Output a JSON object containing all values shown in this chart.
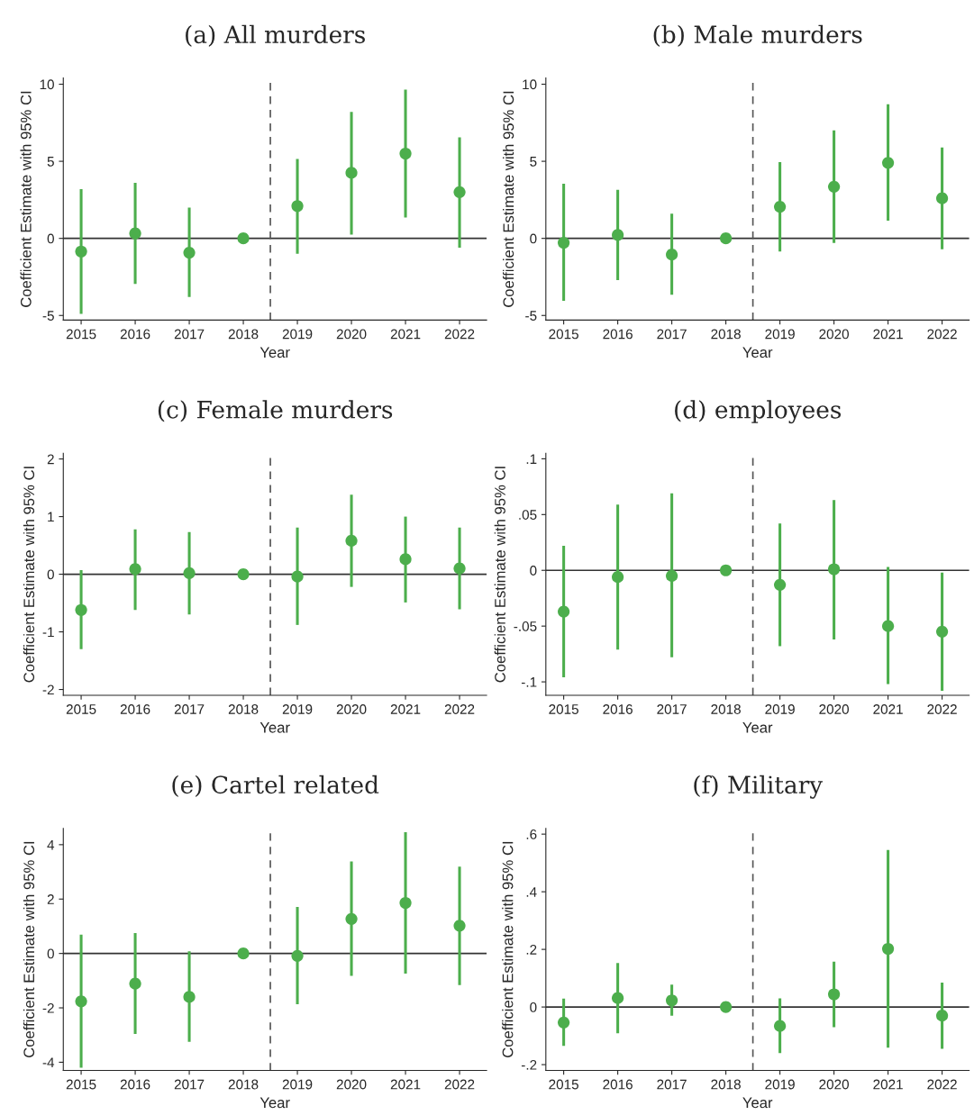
{
  "chart_data": [
    {
      "type": "scatter",
      "title": "(a) All murders",
      "xlabel": "Year",
      "ylabel": "Coefficient Estimate with 95% CI",
      "x": [
        2015,
        2016,
        2017,
        2018,
        2019,
        2020,
        2021,
        2022
      ],
      "xlim": [
        2014.67,
        2022.5
      ],
      "xticks": [
        2015,
        2016,
        2017,
        2018,
        2019,
        2020,
        2021,
        2022
      ],
      "ylim": [
        -5.3,
        10.4
      ],
      "yticks": [
        -5,
        0,
        5,
        10
      ],
      "marker": "circle",
      "grid": false,
      "series": [
        {
          "color": "#4cae4c",
          "values": [
            -0.85,
            0.32,
            -0.93,
            0,
            2.1,
            4.25,
            5.5,
            3.0
          ],
          "errors": [
            [
              -4.9,
              3.2
            ],
            [
              -2.95,
              3.6
            ],
            [
              -3.8,
              2.0
            ],
            null,
            [
              -1.0,
              5.15
            ],
            [
              0.25,
              8.2
            ],
            [
              1.35,
              9.65
            ],
            [
              -0.6,
              6.55
            ]
          ]
        }
      ],
      "ref_lines": [
        {
          "axis": "y",
          "value": 0,
          "color": "#333333",
          "line_style": "solid"
        },
        {
          "axis": "x",
          "value": 2018.5,
          "color": "#555555",
          "line_style": "dashed"
        }
      ]
    },
    {
      "type": "scatter",
      "title": "(b) Male murders",
      "xlabel": "Year",
      "ylabel": "Coefficient Estimate with 95% CI",
      "x": [
        2015,
        2016,
        2017,
        2018,
        2019,
        2020,
        2021,
        2022
      ],
      "xlim": [
        2014.67,
        2022.5
      ],
      "xticks": [
        2015,
        2016,
        2017,
        2018,
        2019,
        2020,
        2021,
        2022
      ],
      "ylim": [
        -5.3,
        10.4
      ],
      "yticks": [
        -5,
        0,
        5,
        10
      ],
      "marker": "circle",
      "grid": false,
      "series": [
        {
          "color": "#4cae4c",
          "values": [
            -0.28,
            0.22,
            -1.05,
            0,
            2.05,
            3.35,
            4.9,
            2.6
          ],
          "errors": [
            [
              -4.05,
              3.55
            ],
            [
              -2.7,
              3.15
            ],
            [
              -3.65,
              1.6
            ],
            null,
            [
              -0.85,
              4.95
            ],
            [
              -0.3,
              7.0
            ],
            [
              1.15,
              8.7
            ],
            [
              -0.7,
              5.9
            ]
          ]
        }
      ],
      "ref_lines": [
        {
          "axis": "y",
          "value": 0,
          "color": "#333333",
          "line_style": "solid"
        },
        {
          "axis": "x",
          "value": 2018.5,
          "color": "#555555",
          "line_style": "dashed"
        }
      ]
    },
    {
      "type": "scatter",
      "title": "(c) Female murders",
      "xlabel": "Year",
      "ylabel": "Coefficient Estimate with 95% CI",
      "x": [
        2015,
        2016,
        2017,
        2018,
        2019,
        2020,
        2021,
        2022
      ],
      "xlim": [
        2014.67,
        2022.5
      ],
      "xticks": [
        2015,
        2016,
        2017,
        2018,
        2019,
        2020,
        2021,
        2022
      ],
      "ylim": [
        -2.1,
        2.1
      ],
      "yticks": [
        -2,
        -1,
        0,
        1,
        2
      ],
      "marker": "circle",
      "grid": false,
      "series": [
        {
          "color": "#4cae4c",
          "values": [
            -0.62,
            0.09,
            0.02,
            0,
            -0.04,
            0.58,
            0.26,
            0.1
          ],
          "errors": [
            [
              -1.3,
              0.07
            ],
            [
              -0.62,
              0.78
            ],
            [
              -0.7,
              0.73
            ],
            null,
            [
              -0.88,
              0.81
            ],
            [
              -0.22,
              1.38
            ],
            [
              -0.49,
              1.0
            ],
            [
              -0.61,
              0.81
            ]
          ]
        }
      ],
      "ref_lines": [
        {
          "axis": "y",
          "value": 0,
          "color": "#333333",
          "line_style": "solid"
        },
        {
          "axis": "x",
          "value": 2018.5,
          "color": "#555555",
          "line_style": "dashed"
        }
      ]
    },
    {
      "type": "scatter",
      "title": "(d) employees",
      "xlabel": "Year",
      "ylabel": "Coefficient Estimate with 95% CI",
      "x": [
        2015,
        2016,
        2017,
        2018,
        2019,
        2020,
        2021,
        2022
      ],
      "xlim": [
        2014.67,
        2022.5
      ],
      "xticks": [
        2015,
        2016,
        2017,
        2018,
        2019,
        2020,
        2021,
        2022
      ],
      "ylim": [
        -0.112,
        0.105
      ],
      "yticks": [
        {
          "value": -0.1,
          "label": "-.1"
        },
        {
          "value": -0.05,
          "label": "-.05"
        },
        0,
        {
          "value": 0.05,
          "label": ".05"
        },
        {
          "value": 0.1,
          "label": ".1"
        }
      ],
      "marker": "circle",
      "grid": false,
      "series": [
        {
          "color": "#4cae4c",
          "values": [
            -0.037,
            -0.006,
            -0.005,
            0,
            -0.013,
            0.001,
            -0.05,
            -0.055
          ],
          "errors": [
            [
              -0.096,
              0.022
            ],
            [
              -0.071,
              0.059
            ],
            [
              -0.078,
              0.069
            ],
            null,
            [
              -0.068,
              0.042
            ],
            [
              -0.062,
              0.063
            ],
            [
              -0.102,
              0.003
            ],
            [
              -0.108,
              -0.002
            ]
          ]
        }
      ],
      "ref_lines": [
        {
          "axis": "y",
          "value": 0,
          "color": "#333333",
          "line_style": "solid"
        },
        {
          "axis": "x",
          "value": 2018.5,
          "color": "#555555",
          "line_style": "dashed"
        }
      ]
    },
    {
      "type": "scatter",
      "title": "(e) Cartel related",
      "xlabel": "Year",
      "ylabel": "Coefficient Estimate with 95% CI",
      "x": [
        2015,
        2016,
        2017,
        2018,
        2019,
        2020,
        2021,
        2022
      ],
      "xlim": [
        2014.67,
        2022.5
      ],
      "xticks": [
        2015,
        2016,
        2017,
        2018,
        2019,
        2020,
        2021,
        2022
      ],
      "ylim": [
        -4.3,
        4.6
      ],
      "yticks": [
        -4,
        -2,
        0,
        2,
        4
      ],
      "marker": "circle",
      "grid": false,
      "series": [
        {
          "color": "#4cae4c",
          "values": [
            -1.76,
            -1.11,
            -1.6,
            0,
            -0.09,
            1.27,
            1.86,
            1.02
          ],
          "errors": [
            [
              -4.2,
              0.69
            ],
            [
              -2.96,
              0.75
            ],
            [
              -3.25,
              0.08
            ],
            null,
            [
              -1.87,
              1.71
            ],
            [
              -0.82,
              3.38
            ],
            [
              -0.74,
              4.46
            ],
            [
              -1.16,
              3.19
            ]
          ]
        }
      ],
      "ref_lines": [
        {
          "axis": "y",
          "value": 0,
          "color": "#333333",
          "line_style": "solid"
        },
        {
          "axis": "x",
          "value": 2018.5,
          "color": "#555555",
          "line_style": "dashed"
        }
      ]
    },
    {
      "type": "scatter",
      "title": "(f) Military",
      "xlabel": "Year",
      "ylabel": "Coefficient Estimate with 95% CI",
      "x": [
        2015,
        2016,
        2017,
        2018,
        2019,
        2020,
        2021,
        2022
      ],
      "xlim": [
        2014.67,
        2022.5
      ],
      "xticks": [
        2015,
        2016,
        2017,
        2018,
        2019,
        2020,
        2021,
        2022
      ],
      "ylim": [
        -0.22,
        0.62
      ],
      "yticks": [
        {
          "value": -0.2,
          "label": "-.2"
        },
        0,
        {
          "value": 0.2,
          "label": ".2"
        },
        {
          "value": 0.4,
          "label": ".4"
        },
        {
          "value": 0.6,
          "label": ".6"
        }
      ],
      "marker": "circle",
      "grid": false,
      "series": [
        {
          "color": "#4cae4c",
          "values": [
            -0.054,
            0.031,
            0.023,
            0,
            -0.066,
            0.044,
            0.202,
            -0.03
          ],
          "errors": [
            [
              -0.135,
              0.029
            ],
            [
              -0.091,
              0.153
            ],
            [
              -0.03,
              0.078
            ],
            null,
            [
              -0.16,
              0.03
            ],
            [
              -0.07,
              0.157
            ],
            [
              -0.141,
              0.545
            ],
            [
              -0.145,
              0.085
            ]
          ]
        }
      ],
      "ref_lines": [
        {
          "axis": "y",
          "value": 0,
          "color": "#333333",
          "line_style": "solid"
        },
        {
          "axis": "x",
          "value": 2018.5,
          "color": "#555555",
          "line_style": "dashed"
        }
      ]
    }
  ]
}
